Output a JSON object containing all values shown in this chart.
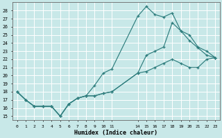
{
  "xlabel": "Humidex (Indice chaleur)",
  "bg_color": "#c8e8e8",
  "grid_color": "#ffffff",
  "line_color": "#2e7d7d",
  "xlim": [
    -0.5,
    23.5
  ],
  "ylim": [
    14.5,
    29.0
  ],
  "yticks": [
    15,
    16,
    17,
    18,
    19,
    20,
    21,
    22,
    23,
    24,
    25,
    26,
    27,
    28
  ],
  "xtick_positions": [
    0,
    1,
    2,
    3,
    4,
    5,
    6,
    7,
    8,
    9,
    10,
    11,
    14,
    15,
    16,
    17,
    18,
    19,
    20,
    21,
    22,
    23
  ],
  "xtick_labels": [
    "0",
    "1",
    "2",
    "3",
    "4",
    "5",
    "6",
    "7",
    "8",
    "9",
    "10",
    "11",
    "14",
    "15",
    "16",
    "17",
    "18",
    "19",
    "20",
    "21",
    "22",
    "23"
  ],
  "line1_x": [
    0,
    1,
    2,
    3,
    4,
    5,
    6,
    7,
    8,
    9,
    10,
    11,
    14,
    15,
    16,
    17,
    18,
    19,
    20,
    21,
    22,
    23
  ],
  "line1_y": [
    18.0,
    17.0,
    16.2,
    16.2,
    16.2,
    15.0,
    16.5,
    17.2,
    17.5,
    18.8,
    20.3,
    20.8,
    27.3,
    28.5,
    27.5,
    27.2,
    27.7,
    25.5,
    24.3,
    23.4,
    22.5,
    22.2
  ],
  "line2_x": [
    0,
    1,
    2,
    3,
    4,
    5,
    6,
    7,
    8,
    9,
    10,
    11,
    14,
    15,
    16,
    17,
    18,
    19,
    20,
    21,
    22,
    23
  ],
  "line2_y": [
    18.0,
    17.0,
    16.2,
    16.2,
    16.2,
    15.0,
    16.5,
    17.2,
    17.5,
    17.5,
    17.8,
    18.0,
    20.3,
    22.5,
    23.0,
    23.5,
    26.5,
    25.5,
    25.0,
    23.5,
    23.0,
    22.2
  ],
  "line3_x": [
    0,
    1,
    2,
    3,
    4,
    5,
    6,
    7,
    8,
    9,
    10,
    11,
    14,
    15,
    16,
    17,
    18,
    19,
    20,
    21,
    22,
    23
  ],
  "line3_y": [
    18.0,
    17.0,
    16.2,
    16.2,
    16.2,
    15.0,
    16.5,
    17.2,
    17.5,
    17.5,
    17.8,
    18.0,
    20.3,
    20.5,
    21.0,
    21.5,
    22.0,
    21.5,
    21.0,
    21.0,
    22.0,
    22.2
  ]
}
